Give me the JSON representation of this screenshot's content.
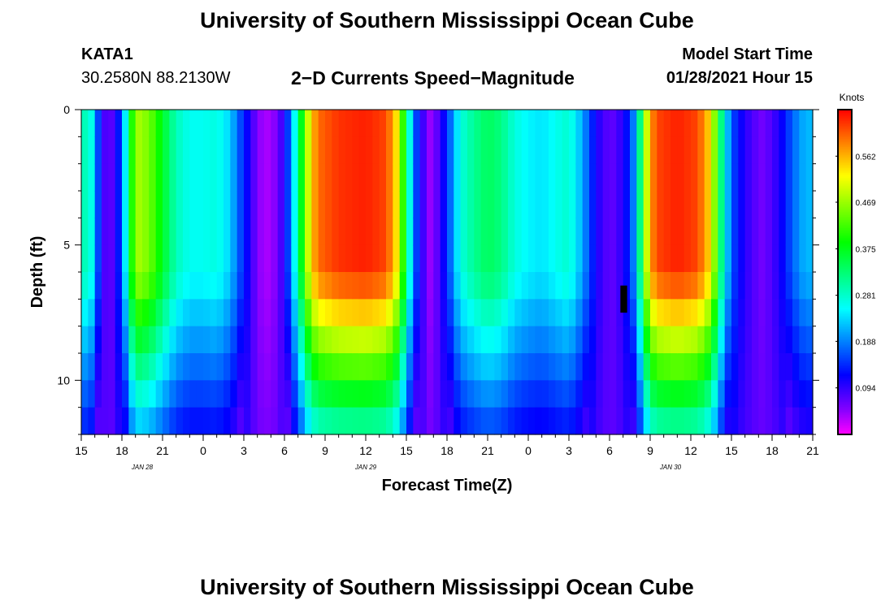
{
  "header": {
    "title": "University of Southern Mississippi Ocean Cube",
    "station_id": "KATA1",
    "coordinates": "30.2580N 88.2130W",
    "plot_title": "2−D Currents Speed−Magnitude",
    "model_start_label": "Model Start Time",
    "model_start_value": "01/28/2021 Hour 15"
  },
  "footer": {
    "title": "University of Southern Mississippi Ocean Cube"
  },
  "chart_data": {
    "type": "heatmap",
    "title": "2-D Currents Speed-Magnitude",
    "xlabel": "Forecast Time(Z)",
    "ylabel": "Depth (ft)",
    "x_range_hours": [
      0,
      54
    ],
    "x_ticks": [
      {
        "hour": 0,
        "label": "15"
      },
      {
        "hour": 3,
        "label": "18"
      },
      {
        "hour": 6,
        "label": "21"
      },
      {
        "hour": 9,
        "label": "0"
      },
      {
        "hour": 12,
        "label": "3"
      },
      {
        "hour": 15,
        "label": "6"
      },
      {
        "hour": 18,
        "label": "9"
      },
      {
        "hour": 21,
        "label": "12"
      },
      {
        "hour": 24,
        "label": "15"
      },
      {
        "hour": 27,
        "label": "18"
      },
      {
        "hour": 30,
        "label": "21"
      },
      {
        "hour": 33,
        "label": "0"
      },
      {
        "hour": 36,
        "label": "3"
      },
      {
        "hour": 39,
        "label": "6"
      },
      {
        "hour": 42,
        "label": "9"
      },
      {
        "hour": 45,
        "label": "12"
      },
      {
        "hour": 48,
        "label": "15"
      },
      {
        "hour": 51,
        "label": "18"
      },
      {
        "hour": 54,
        "label": "21"
      }
    ],
    "date_labels": [
      {
        "hour": 4.5,
        "label": "JAN 28"
      },
      {
        "hour": 21,
        "label": "JAN 29"
      },
      {
        "hour": 43.5,
        "label": "JAN 30"
      }
    ],
    "y_range_ft": [
      0,
      12
    ],
    "y_ticks": [
      0,
      5,
      10
    ],
    "colorbar": {
      "unit": "Knots",
      "range": [
        0.0,
        0.656
      ],
      "tick_labels": [
        "0.094",
        "0.188",
        "0.281",
        "0.375",
        "0.469",
        "0.562"
      ]
    },
    "depth_layers": 12,
    "surface_speed_profile": [
      {
        "hour": 0.0,
        "value": 0.25
      },
      {
        "hour": 0.5,
        "value": 0.33
      },
      {
        "hour": 1.0,
        "value": 0.2
      },
      {
        "hour": 1.5,
        "value": 0.11
      },
      {
        "hour": 2.0,
        "value": 0.05
      },
      {
        "hour": 2.5,
        "value": 0.1
      },
      {
        "hour": 3.0,
        "value": 0.16
      },
      {
        "hour": 3.5,
        "value": 0.33
      },
      {
        "hour": 4.0,
        "value": 0.48
      },
      {
        "hour": 5.0,
        "value": 0.45
      },
      {
        "hour": 6.0,
        "value": 0.37
      },
      {
        "hour": 7.0,
        "value": 0.29
      },
      {
        "hour": 8.0,
        "value": 0.26
      },
      {
        "hour": 9.0,
        "value": 0.26
      },
      {
        "hour": 10.0,
        "value": 0.27
      },
      {
        "hour": 11.0,
        "value": 0.23
      },
      {
        "hour": 11.6,
        "value": 0.17
      },
      {
        "hour": 12.2,
        "value": 0.12
      },
      {
        "hour": 12.8,
        "value": 0.07
      },
      {
        "hour": 13.5,
        "value": 0.03
      },
      {
        "hour": 14.3,
        "value": 0.05
      },
      {
        "hour": 15.0,
        "value": 0.1
      },
      {
        "hour": 15.5,
        "value": 0.2
      },
      {
        "hour": 16.0,
        "value": 0.31
      },
      {
        "hour": 16.5,
        "value": 0.44
      },
      {
        "hour": 17.0,
        "value": 0.55
      },
      {
        "hour": 17.5,
        "value": 0.6
      },
      {
        "hour": 19.0,
        "value": 0.63
      },
      {
        "hour": 21.0,
        "value": 0.64
      },
      {
        "hour": 22.5,
        "value": 0.62
      },
      {
        "hour": 23.2,
        "value": 0.55
      },
      {
        "hour": 23.8,
        "value": 0.4
      },
      {
        "hour": 24.3,
        "value": 0.25
      },
      {
        "hour": 24.8,
        "value": 0.14
      },
      {
        "hour": 25.3,
        "value": 0.08
      },
      {
        "hour": 25.8,
        "value": 0.04
      },
      {
        "hour": 26.4,
        "value": 0.08
      },
      {
        "hour": 27.0,
        "value": 0.14
      },
      {
        "hour": 27.5,
        "value": 0.21
      },
      {
        "hour": 28.0,
        "value": 0.27
      },
      {
        "hour": 29.0,
        "value": 0.31
      },
      {
        "hour": 30.0,
        "value": 0.34
      },
      {
        "hour": 31.0,
        "value": 0.32
      },
      {
        "hour": 32.0,
        "value": 0.27
      },
      {
        "hour": 33.0,
        "value": 0.25
      },
      {
        "hour": 34.0,
        "value": 0.24
      },
      {
        "hour": 35.0,
        "value": 0.26
      },
      {
        "hour": 36.0,
        "value": 0.28
      },
      {
        "hour": 36.7,
        "value": 0.23
      },
      {
        "hour": 37.4,
        "value": 0.17
      },
      {
        "hour": 38.0,
        "value": 0.11
      },
      {
        "hour": 38.6,
        "value": 0.08
      },
      {
        "hour": 39.2,
        "value": 0.07
      },
      {
        "hour": 40.0,
        "value": 0.1
      },
      {
        "hour": 40.7,
        "value": 0.17
      },
      {
        "hour": 41.2,
        "value": 0.3
      },
      {
        "hour": 41.6,
        "value": 0.45
      },
      {
        "hour": 42.0,
        "value": 0.57
      },
      {
        "hour": 42.5,
        "value": 0.62
      },
      {
        "hour": 44.0,
        "value": 0.64
      },
      {
        "hour": 45.5,
        "value": 0.62
      },
      {
        "hour": 46.3,
        "value": 0.55
      },
      {
        "hour": 46.8,
        "value": 0.45
      },
      {
        "hour": 47.2,
        "value": 0.33
      },
      {
        "hour": 47.7,
        "value": 0.22
      },
      {
        "hour": 48.2,
        "value": 0.15
      },
      {
        "hour": 48.8,
        "value": 0.11
      },
      {
        "hour": 49.5,
        "value": 0.08
      },
      {
        "hour": 50.3,
        "value": 0.06
      },
      {
        "hour": 51.0,
        "value": 0.08
      },
      {
        "hour": 51.8,
        "value": 0.12
      },
      {
        "hour": 52.5,
        "value": 0.17
      },
      {
        "hour": 53.3,
        "value": 0.21
      },
      {
        "hour": 54.0,
        "value": 0.22
      }
    ],
    "missing_data_cells": [
      {
        "hour_start": 39.8,
        "hour_end": 40.3,
        "depth_start": 6.5,
        "depth_end": 7.5
      }
    ]
  }
}
